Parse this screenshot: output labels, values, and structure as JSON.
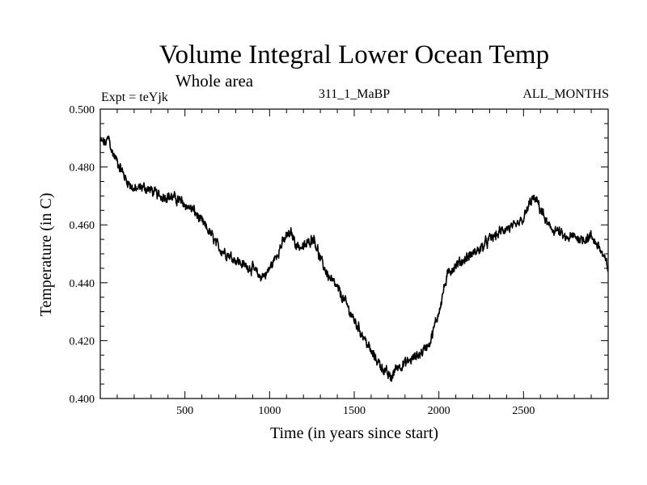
{
  "chart_data": {
    "type": "line",
    "title": "Volume Integral Lower Ocean Temp",
    "subtitle": "Whole area",
    "expt_label": "Expt = teYjk",
    "run_label": "311_1_MaBP",
    "months_label": "ALL_MONTHS",
    "xlabel": "Time (in years since start)",
    "ylabel": "Temperature (in C)",
    "xlim": [
      0,
      3000
    ],
    "ylim": [
      0.4,
      0.5
    ],
    "x_ticks": [
      500,
      1000,
      1500,
      2000,
      2500
    ],
    "y_ticks": [
      "0.400",
      "0.420",
      "0.440",
      "0.460",
      "0.480",
      "0.500"
    ],
    "series": [
      {
        "name": "Volume integral lower ocean temperature",
        "x": [
          0,
          30,
          50,
          70,
          100,
          150,
          200,
          250,
          300,
          350,
          400,
          450,
          500,
          550,
          600,
          650,
          700,
          750,
          800,
          850,
          900,
          940,
          980,
          1020,
          1060,
          1100,
          1130,
          1160,
          1200,
          1230,
          1260,
          1300,
          1350,
          1400,
          1450,
          1500,
          1550,
          1600,
          1650,
          1700,
          1720,
          1750,
          1800,
          1850,
          1900,
          1950,
          2000,
          2030,
          2060,
          2100,
          2150,
          2200,
          2250,
          2300,
          2350,
          2400,
          2450,
          2500,
          2550,
          2580,
          2620,
          2650,
          2700,
          2750,
          2800,
          2850,
          2900,
          2950,
          3000
        ],
        "values": [
          0.489,
          0.488,
          0.49,
          0.485,
          0.482,
          0.476,
          0.472,
          0.473,
          0.472,
          0.47,
          0.47,
          0.469,
          0.467,
          0.465,
          0.461,
          0.457,
          0.452,
          0.45,
          0.448,
          0.446,
          0.445,
          0.442,
          0.443,
          0.447,
          0.452,
          0.456,
          0.457,
          0.453,
          0.452,
          0.454,
          0.456,
          0.448,
          0.442,
          0.438,
          0.433,
          0.427,
          0.422,
          0.416,
          0.412,
          0.408,
          0.407,
          0.411,
          0.412,
          0.414,
          0.416,
          0.42,
          0.43,
          0.438,
          0.444,
          0.446,
          0.448,
          0.45,
          0.452,
          0.455,
          0.457,
          0.459,
          0.459,
          0.462,
          0.469,
          0.468,
          0.463,
          0.459,
          0.458,
          0.455,
          0.456,
          0.455,
          0.456,
          0.452,
          0.445
        ]
      }
    ]
  }
}
